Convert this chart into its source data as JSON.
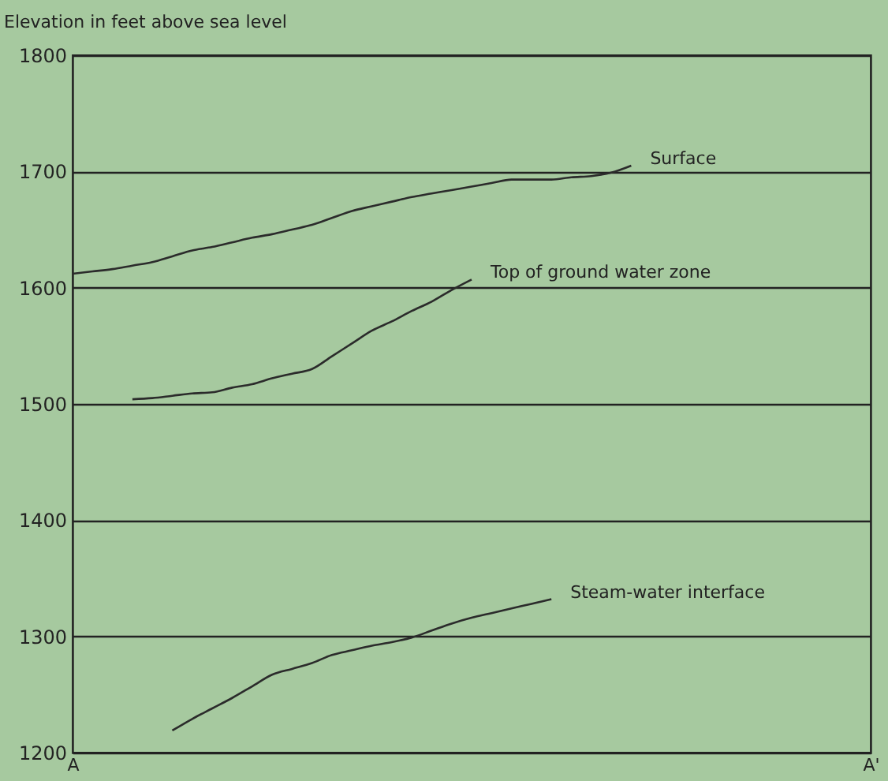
{
  "chart_data": {
    "type": "line",
    "ylabel": "Elevation in feet above sea level",
    "categories": [
      "A",
      null,
      null,
      null,
      null,
      null,
      null,
      null,
      null,
      null,
      null,
      null,
      null,
      null,
      null,
      null,
      null,
      null,
      null,
      null,
      null,
      null,
      null,
      null,
      null,
      null,
      null,
      null,
      null,
      null,
      null,
      null,
      null,
      null,
      null,
      null,
      null,
      null,
      null,
      null,
      "A'"
    ],
    "ylim": [
      1200,
      1800
    ],
    "yticks": [
      1200,
      1300,
      1400,
      1500,
      1600,
      1700,
      1800
    ],
    "grid": "y",
    "legend": false,
    "marker": "none",
    "line_style": "solid",
    "series": [
      {
        "name": "Surface",
        "color": "#2b2b2b",
        "values": [
          1612,
          1614,
          1616,
          1619,
          1622,
          1627,
          1632,
          1635,
          1639,
          1643,
          1646,
          1650,
          1654,
          1660,
          1666,
          1670,
          1674,
          1678,
          1681,
          1684,
          1687,
          1690,
          1693,
          1693,
          1693,
          1695,
          1696,
          1699,
          1705,
          null,
          null,
          null,
          null,
          null,
          null,
          null,
          null,
          null,
          null,
          null,
          null
        ]
      },
      {
        "name": "Top of ground water zone",
        "color": "#2b2b2b",
        "values": [
          null,
          null,
          null,
          1504,
          1505,
          1507,
          1509,
          1510,
          1514,
          1517,
          1522,
          1526,
          1530,
          1541,
          1552,
          1563,
          1571,
          1580,
          1588,
          1598,
          1607,
          null,
          null,
          null,
          null,
          null,
          null,
          null,
          null,
          null,
          null,
          null,
          null,
          null,
          null,
          null,
          null,
          null,
          null,
          null,
          null
        ]
      },
      {
        "name": "Steam-water interface",
        "color": "#2b2b2b",
        "values": [
          null,
          null,
          null,
          null,
          null,
          1219,
          1229,
          1238,
          1247,
          1257,
          1267,
          1272,
          1277,
          1284,
          1288,
          1292,
          1295,
          1299,
          1305,
          1311,
          1316,
          1320,
          1324,
          1328,
          1332,
          null,
          null,
          null,
          null,
          null,
          null,
          null,
          null,
          null,
          null,
          null,
          null,
          null,
          null,
          null,
          null
        ]
      }
    ]
  }
}
